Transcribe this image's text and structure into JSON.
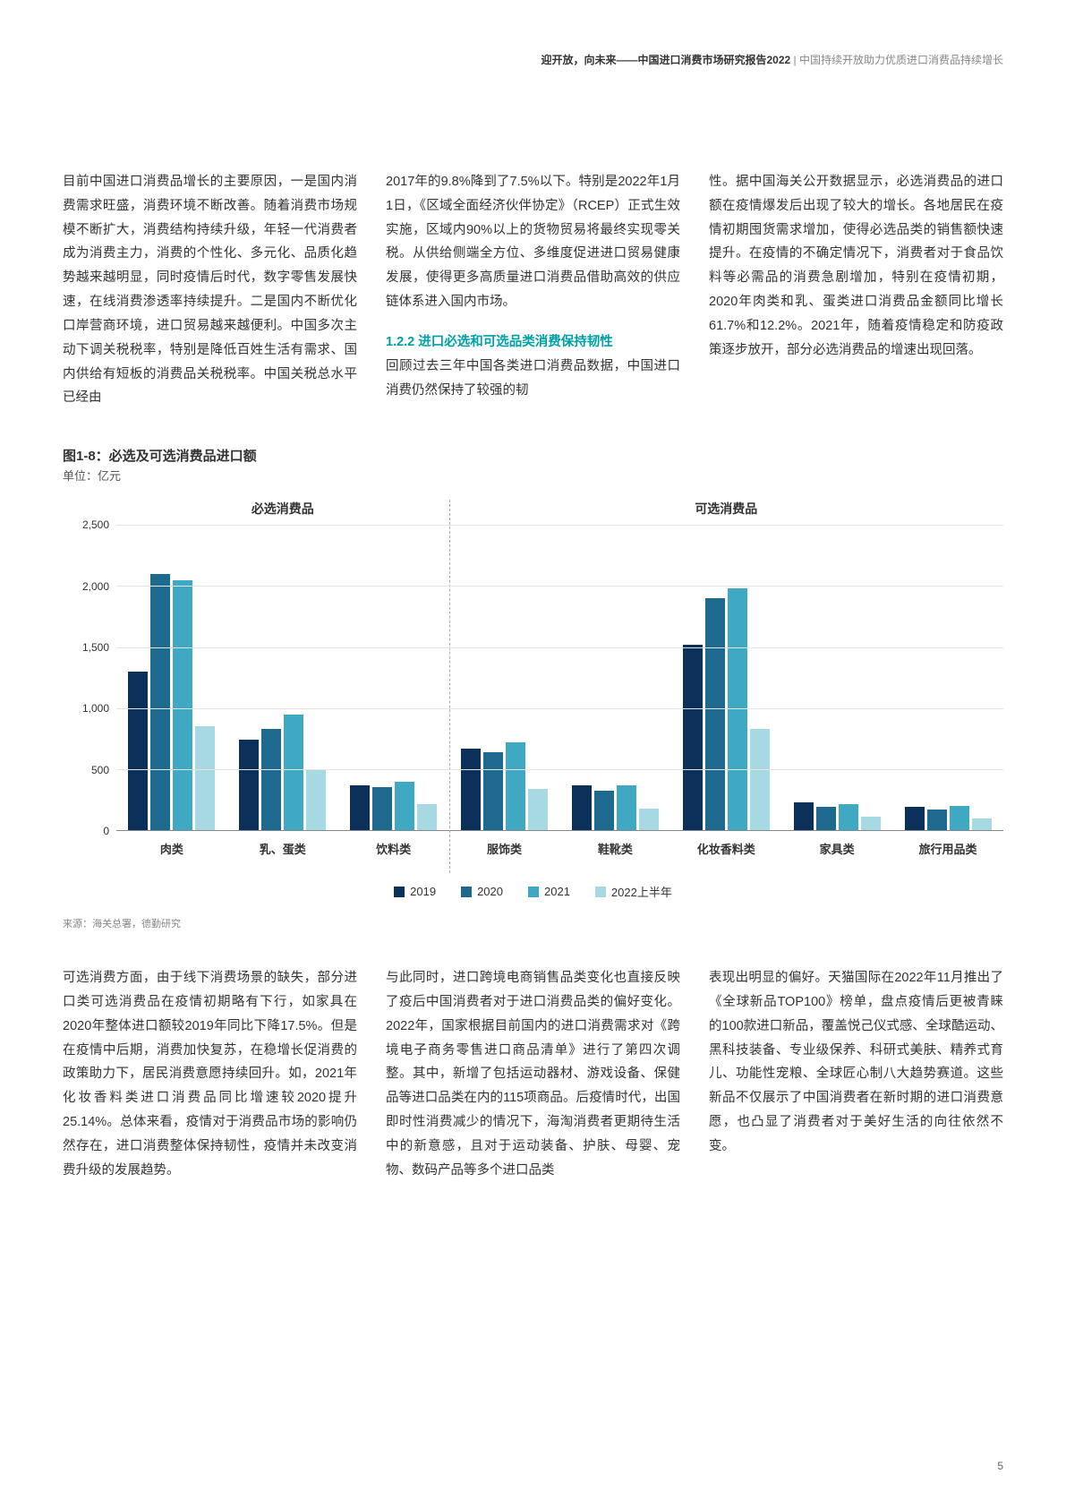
{
  "header": {
    "title_bold": "迎开放，向未来——中国进口消费市场研究报告2022",
    "title_gray": " | 中国持续开放助力优质进口消费品持续增长"
  },
  "top": {
    "col1": "目前中国进口消费品增长的主要原因，一是国内消费需求旺盛，消费环境不断改善。随着消费市场规模不断扩大，消费结构持续升级，年轻一代消费者成为消费主力，消费的个性化、多元化、品质化趋势越来越明显，同时疫情后时代，数字零售发展快速，在线消费渗透率持续提升。二是国内不断优化口岸营商环境，进口贸易越来越便利。中国多次主动下调关税税率，特别是降低百姓生活有需求、国内供给有短板的消费品关税税率。中国关税总水平已经由",
    "col2_p1": "2017年的9.8%降到了7.5%以下。特别是2022年1月1日，《区域全面经济伙伴协定》（RCEP）正式生效实施，区域内90%以上的货物贸易将最终实现零关税。从供给侧端全方位、多维度促进进口贸易健康发展，使得更多高质量进口消费品借助高效的供应链体系进入国内市场。",
    "col2_heading": "1.2.2 进口必选和可选品类消费保持韧性",
    "col2_p2": "回顾过去三年中国各类进口消费品数据，中国进口消费仍然保持了较强的韧",
    "col3": "性。据中国海关公开数据显示，必选消费品的进口额在疫情爆发后出现了较大的增长。各地居民在疫情初期囤货需求增加，使得必选品类的销售额快速提升。在疫情的不确定情况下，消费者对于食品饮料等必需品的消费急剧增加，特别在疫情初期，2020年肉类和乳、蛋类进口消费品金额同比增长61.7%和12.2%。2021年，随着疫情稳定和防疫政策逐步放开，部分必选消费品的增速出现回落。"
  },
  "chart": {
    "title": "图1-8：必选及可选消费品进口额",
    "unit": "单位：亿元",
    "group_left": "必选消费品",
    "group_right": "可选消费品",
    "ymax": 2500,
    "ytick_step": 500,
    "categories": [
      "肉类",
      "乳、蛋类",
      "饮料类",
      "服饰类",
      "鞋靴类",
      "化妆香料类",
      "家具类",
      "旅行用品类"
    ],
    "series": [
      {
        "label": "2019",
        "color": "#0b315a"
      },
      {
        "label": "2020",
        "color": "#1e6a8e"
      },
      {
        "label": "2021",
        "color": "#3fa9c4"
      },
      {
        "label": "2022上半年",
        "color": "#a7d9e3"
      }
    ],
    "data": {
      "肉类": [
        1300,
        2100,
        2050,
        850
      ],
      "乳、蛋类": [
        740,
        830,
        950,
        500
      ],
      "饮料类": [
        370,
        350,
        400,
        210
      ],
      "服饰类": [
        670,
        640,
        720,
        340
      ],
      "鞋靴类": [
        370,
        320,
        370,
        180
      ],
      "化妆香料类": [
        1520,
        1900,
        1980,
        830
      ],
      "家具类": [
        230,
        190,
        210,
        110
      ],
      "旅行用品类": [
        190,
        170,
        200,
        100
      ]
    },
    "divider_after_index": 3,
    "source": "来源：海关总署，德勤研究",
    "background_color": "#ffffff",
    "grid_color": "#e5e5e5",
    "axis_color": "#888888",
    "bar_gap": 3,
    "cat_fontsize": 13,
    "tick_fontsize": 12
  },
  "bottom": {
    "col1": "可选消费方面，由于线下消费场景的缺失，部分进口类可选消费品在疫情初期略有下行，如家具在2020年整体进口额较2019年同比下降17.5%。但是在疫情中后期，消费加快复苏，在稳增长促消费的政策助力下，居民消费意愿持续回升。如，2021年化妆香料类进口消费品同比增速较2020提升25.14%。总体来看，疫情对于消费品市场的影响仍然存在，进口消费整体保持韧性，疫情并未改变消费升级的发展趋势。",
    "col2": "与此同时，进口跨境电商销售品类变化也直接反映了疫后中国消费者对于进口消费品类的偏好变化。2022年，国家根据目前国内的进口消费需求对《跨境电子商务零售进口商品清单》进行了第四次调整。其中，新增了包括运动器材、游戏设备、保健品等进口品类在内的115项商品。后疫情时代，出国即时性消费减少的情况下，海淘消费者更期待生活中的新意感，且对于运动装备、护肤、母婴、宠物、数码产品等多个进口品类",
    "col3": "表现出明显的偏好。天猫国际在2022年11月推出了《全球新品TOP100》榜单，盘点疫情后更被青睐的100款进口新品，覆盖悦己仪式感、全球酷运动、黑科技装备、专业级保养、科研式美肤、精养式育儿、功能性宠粮、全球匠心制八大趋势赛道。这些新品不仅展示了中国消费者在新时期的进口消费意愿，也凸显了消费者对于美好生活的向往依然不变。"
  },
  "page_number": "5"
}
